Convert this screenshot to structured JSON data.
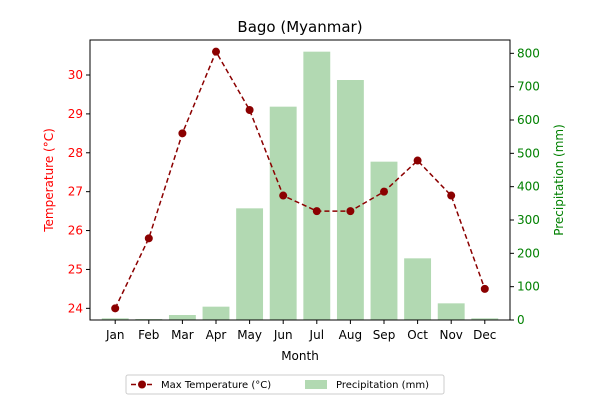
{
  "chart_data": {
    "type": "bar+line",
    "title": "Bago (Myanmar)",
    "xlabel": "Month",
    "categories": [
      "Jan",
      "Feb",
      "Mar",
      "Apr",
      "May",
      "Jun",
      "Jul",
      "Aug",
      "Sep",
      "Oct",
      "Nov",
      "Dec"
    ],
    "left_axis": {
      "label": "Temperature (°C)",
      "ylim": [
        23.7,
        30.9
      ],
      "ticks": [
        24,
        25,
        26,
        27,
        28,
        29,
        30
      ],
      "color": "#ff0000"
    },
    "right_axis": {
      "label": "Precipitation (mm)",
      "ylim": [
        0,
        840
      ],
      "ticks": [
        0,
        100,
        200,
        300,
        400,
        500,
        600,
        700,
        800
      ],
      "color": "#008000"
    },
    "series": [
      {
        "name": "Max Temperature (°C)",
        "kind": "line",
        "axis": "left",
        "color": "#8b0000",
        "line_style": "dashed",
        "marker": "circle",
        "values": [
          24.0,
          25.8,
          28.5,
          30.6,
          29.1,
          26.9,
          26.5,
          26.5,
          27.0,
          27.8,
          26.9,
          24.5
        ]
      },
      {
        "name": "Precipitation (mm)",
        "kind": "bar",
        "axis": "right",
        "color": "#b2d9b2",
        "values": [
          5,
          3,
          15,
          40,
          335,
          640,
          805,
          720,
          475,
          185,
          50,
          5
        ]
      }
    ],
    "legend": {
      "placement": "bottom-center",
      "columns": 2
    },
    "grid": false
  }
}
